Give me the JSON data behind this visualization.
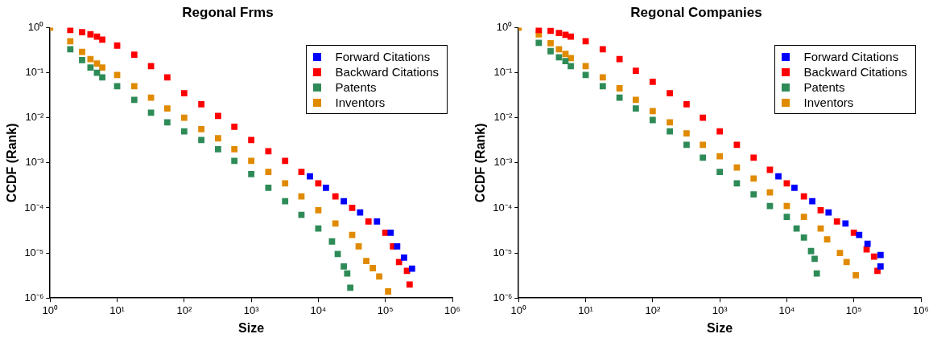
{
  "chart_data": [
    {
      "type": "scatter",
      "title": "Regonal Frms",
      "xlabel": "Size",
      "ylabel": "CCDF (Rank)",
      "log": "xy",
      "grid": false,
      "legend": "top right",
      "marker": "square",
      "xlim": [
        1,
        1000000
      ],
      "ylim": [
        1e-06,
        1
      ],
      "xticks": [
        {
          "value": 1,
          "label": "10⁰"
        },
        {
          "value": 10,
          "label": "10¹"
        },
        {
          "value": 100,
          "label": "10²"
        },
        {
          "value": 1000,
          "label": "10³"
        },
        {
          "value": 10000,
          "label": "10⁴"
        },
        {
          "value": 100000,
          "label": "10⁵"
        },
        {
          "value": 1000000,
          "label": "10⁶"
        }
      ],
      "yticks": [
        {
          "value": 1e-06,
          "label": "10⁻⁶"
        },
        {
          "value": 1e-05,
          "label": "10⁻⁵"
        },
        {
          "value": 0.0001,
          "label": "10⁻⁴"
        },
        {
          "value": 0.001,
          "label": "10⁻³"
        },
        {
          "value": 0.01,
          "label": "10⁻²"
        },
        {
          "value": 0.1,
          "label": "10⁻¹"
        },
        {
          "value": 1,
          "label": "10⁰"
        }
      ],
      "series": [
        {
          "name": "Forward Citations",
          "color": "#0000ff",
          "x": [
            7500,
            13000,
            24000,
            42000,
            75000,
            120000,
            150000,
            190000,
            250000
          ],
          "values": [
            0.0005,
            0.00028,
            0.00014,
            7.9e-05,
            5e-05,
            2.8e-05,
            1.4e-05,
            7.9e-06,
            4.5e-06
          ]
        },
        {
          "name": "Backward Citations",
          "color": "#ff0000",
          "x": [
            2,
            3,
            4,
            5,
            6,
            10,
            18,
            32,
            56,
            100,
            180,
            320,
            560,
            1000,
            1800,
            3200,
            5600,
            10000,
            18000,
            32000,
            56000,
            100000,
            130000,
            160000,
            210000,
            230000
          ],
          "values": [
            0.89,
            0.79,
            0.71,
            0.63,
            0.54,
            0.4,
            0.25,
            0.14,
            0.079,
            0.035,
            0.02,
            0.011,
            0.0063,
            0.0032,
            0.0018,
            0.0011,
            0.00063,
            0.00035,
            0.00018,
            0.0001,
            5e-05,
            2.8e-05,
            1.4e-05,
            6.3e-06,
            4e-06,
            2e-06
          ]
        },
        {
          "name": "Patents",
          "color": "#2e8b57",
          "x": [
            2,
            3,
            4,
            5,
            6,
            10,
            18,
            32,
            56,
            100,
            180,
            320,
            560,
            1000,
            1800,
            3200,
            5600,
            10000,
            16000,
            19500,
            24000,
            27000,
            30000
          ],
          "values": [
            0.33,
            0.19,
            0.13,
            0.1,
            0.079,
            0.05,
            0.025,
            0.013,
            0.0079,
            0.005,
            0.0032,
            0.002,
            0.0011,
            0.00056,
            0.00028,
            0.00014,
            7e-05,
            3.5e-05,
            1.8e-05,
            9.5e-06,
            5e-06,
            3.5e-06,
            1.7e-06
          ]
        },
        {
          "name": "Inventors",
          "color": "#e08a00",
          "x": [
            1,
            2,
            3,
            4,
            5,
            6,
            10,
            18,
            32,
            56,
            100,
            180,
            320,
            560,
            1000,
            1800,
            3200,
            5600,
            10000,
            18000,
            32000,
            40000,
            52000,
            65000,
            81000,
            110000
          ],
          "values": [
            1,
            0.5,
            0.29,
            0.2,
            0.16,
            0.13,
            0.089,
            0.05,
            0.028,
            0.016,
            0.01,
            0.0056,
            0.0035,
            0.002,
            0.0011,
            0.00063,
            0.00035,
            0.00018,
            8.9e-05,
            4.5e-05,
            2.5e-05,
            1.4e-05,
            6.6e-06,
            4.6e-06,
            3e-06,
            1.4e-06
          ]
        }
      ]
    },
    {
      "type": "scatter",
      "title": "Regonal Companies",
      "xlabel": "Size",
      "ylabel": "CCDF (Rank)",
      "log": "xy",
      "grid": false,
      "legend": "top right",
      "marker": "square",
      "xlim": [
        1,
        1000000
      ],
      "ylim": [
        1e-06,
        1
      ],
      "xticks": [
        {
          "value": 1,
          "label": "10⁰"
        },
        {
          "value": 10,
          "label": "10¹"
        },
        {
          "value": 100,
          "label": "10²"
        },
        {
          "value": 1000,
          "label": "10³"
        },
        {
          "value": 10000,
          "label": "10⁴"
        },
        {
          "value": 100000,
          "label": "10⁵"
        },
        {
          "value": 1000000,
          "label": "10⁶"
        }
      ],
      "yticks": [
        {
          "value": 1e-06,
          "label": "10⁻⁶"
        },
        {
          "value": 1e-05,
          "label": "10⁻⁵"
        },
        {
          "value": 0.0001,
          "label": "10⁻⁴"
        },
        {
          "value": 0.001,
          "label": "10⁻³"
        },
        {
          "value": 0.01,
          "label": "10⁻²"
        },
        {
          "value": 0.1,
          "label": "10⁻¹"
        },
        {
          "value": 1,
          "label": "10⁰"
        }
      ],
      "series": [
        {
          "name": "Forward Citations",
          "color": "#0000ff",
          "x": [
            7500,
            13000,
            24000,
            42000,
            75000,
            120000,
            160000,
            250000,
            250000
          ],
          "values": [
            0.0005,
            0.00028,
            0.00014,
            7.9e-05,
            4.5e-05,
            2.5e-05,
            1.6e-05,
            9e-06,
            5e-06
          ]
        },
        {
          "name": "Backward Citations",
          "color": "#ff0000",
          "x": [
            2,
            3,
            4,
            5,
            6,
            10,
            18,
            32,
            56,
            100,
            180,
            320,
            560,
            1000,
            1800,
            3200,
            5600,
            10000,
            18000,
            32000,
            56000,
            100000,
            155000,
            200000,
            225000
          ],
          "values": [
            0.89,
            0.85,
            0.76,
            0.69,
            0.63,
            0.5,
            0.33,
            0.2,
            0.11,
            0.063,
            0.035,
            0.02,
            0.01,
            0.005,
            0.0025,
            0.0013,
            0.0007,
            0.00035,
            0.00018,
            8.9e-05,
            5e-05,
            2.8e-05,
            1.2e-05,
            8.3e-06,
            4e-06
          ]
        },
        {
          "name": "Patents",
          "color": "#2e8b57",
          "x": [
            2,
            3,
            4,
            5,
            6,
            10,
            18,
            32,
            56,
            100,
            180,
            320,
            560,
            1000,
            1800,
            3200,
            5600,
            10000,
            14000,
            18000,
            23000,
            26000,
            28000
          ],
          "values": [
            0.46,
            0.3,
            0.22,
            0.18,
            0.14,
            0.089,
            0.05,
            0.028,
            0.016,
            0.0089,
            0.005,
            0.0025,
            0.0013,
            0.00063,
            0.00035,
            0.0002,
            0.00011,
            6.3e-05,
            3.5e-05,
            2.2e-05,
            1.1e-05,
            7.4e-06,
            3.5e-06
          ]
        },
        {
          "name": "Inventors",
          "color": "#e08a00",
          "x": [
            1,
            2,
            3,
            4,
            5,
            6,
            10,
            18,
            32,
            56,
            100,
            180,
            320,
            560,
            1000,
            1800,
            3200,
            5600,
            10000,
            18000,
            32000,
            40000,
            62000,
            78000,
            107000
          ],
          "values": [
            1,
            0.71,
            0.45,
            0.33,
            0.26,
            0.21,
            0.14,
            0.079,
            0.045,
            0.025,
            0.014,
            0.0079,
            0.0045,
            0.0025,
            0.0014,
            0.00079,
            0.00045,
            0.00022,
            0.00011,
            6.3e-05,
            3.5e-05,
            2e-05,
            1e-05,
            6.3e-06,
            3.2e-06
          ]
        }
      ]
    }
  ]
}
